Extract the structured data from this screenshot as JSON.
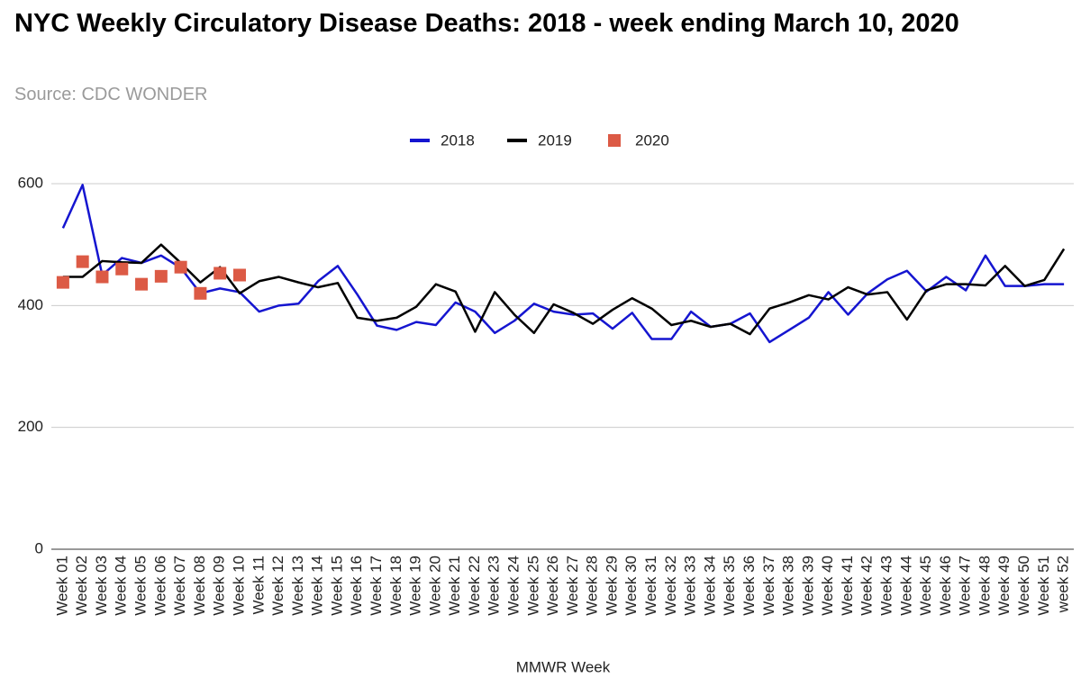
{
  "chart_data": {
    "type": "line",
    "title": "NYC Weekly Circulatory Disease Deaths: 2018 - week ending March 10, 2020",
    "subtitle": "Source: CDC WONDER",
    "x_label": "MMWR Week",
    "categories": [
      "Week 01",
      "Week 02",
      "Week 03",
      "Week 04",
      "Week 05",
      "Week 06",
      "Week 07",
      "Week 08",
      "Week 09",
      "Week 10",
      "Week 11",
      "Week 12",
      "Week 13",
      "Week 14",
      "Week 15",
      "Week 16",
      "Week 17",
      "Week 18",
      "Week 19",
      "Week 20",
      "Week 21",
      "Week 22",
      "Week 23",
      "Week 24",
      "Week 25",
      "Week 26",
      "Week 27",
      "Week 28",
      "Week 29",
      "Week 30",
      "Week 31",
      "Week 32",
      "Week 33",
      "Week 34",
      "Week 35",
      "Week 36",
      "Week 37",
      "Week 38",
      "Week 39",
      "Week 40",
      "Week 41",
      "Week 42",
      "Week 43",
      "Week 44",
      "Week 45",
      "Week 46",
      "Week 47",
      "Week 48",
      "Week 49",
      "Week 50",
      "Week 51",
      "week 52"
    ],
    "series": [
      {
        "name": "2018",
        "color": "#1515d0",
        "values": [
          527,
          598,
          450,
          478,
          470,
          482,
          462,
          420,
          428,
          422,
          390,
          400,
          403,
          440,
          465,
          418,
          367,
          360,
          373,
          368,
          405,
          390,
          355,
          375,
          403,
          390,
          385,
          387,
          362,
          388,
          345,
          345,
          390,
          365,
          370,
          387,
          340,
          360,
          380,
          422,
          385,
          420,
          443,
          457,
          423,
          447,
          425,
          482,
          432,
          432,
          435,
          435
        ]
      },
      {
        "name": "2019",
        "color": "#000000",
        "values": [
          447,
          447,
          473,
          471,
          470,
          500,
          470,
          438,
          463,
          420,
          440,
          447,
          438,
          430,
          437,
          380,
          375,
          380,
          398,
          435,
          423,
          357,
          422,
          385,
          355,
          402,
          388,
          370,
          393,
          412,
          395,
          368,
          375,
          365,
          370,
          353,
          395,
          405,
          417,
          410,
          430,
          418,
          422,
          377,
          425,
          435,
          435,
          433,
          465,
          432,
          442,
          493
        ]
      },
      {
        "name": "2020",
        "color": "#dc5a45",
        "marker": "square",
        "values": [
          438,
          472,
          447,
          460,
          435,
          448,
          463,
          420,
          453,
          450,
          null,
          null,
          null,
          null,
          null,
          null,
          null,
          null,
          null,
          null,
          null,
          null,
          null,
          null,
          null,
          null,
          null,
          null,
          null,
          null,
          null,
          null,
          null,
          null,
          null,
          null,
          null,
          null,
          null,
          null,
          null,
          null,
          null,
          null,
          null,
          null,
          null,
          null,
          null,
          null,
          null,
          null
        ]
      }
    ],
    "ylim": [
      0,
      600
    ],
    "yticks": [
      0,
      200,
      400,
      600
    ],
    "grid": true,
    "legend": "top"
  }
}
